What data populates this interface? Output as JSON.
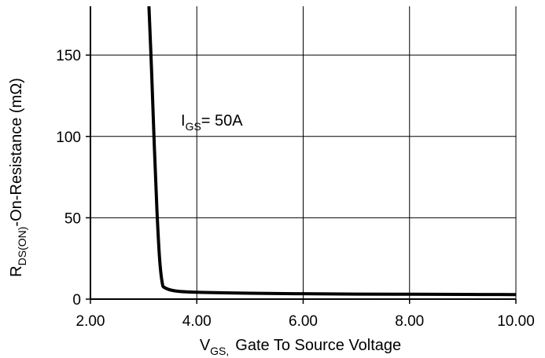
{
  "chart_data": {
    "type": "line",
    "xlabel": {
      "symbol": "V",
      "subscript": "GS,",
      "text": "Gate To Source Voltage"
    },
    "ylabel": {
      "symbol": "R",
      "subscript": "DS(ON)",
      "text": "-On-Resistance (mΩ)"
    },
    "xlim": [
      2.0,
      10.0
    ],
    "ylim": [
      0,
      180
    ],
    "x_ticks": [
      2.0,
      4.0,
      6.0,
      8.0,
      10.0
    ],
    "x_tick_labels": [
      "2.00",
      "4.00",
      "6.00",
      "8.00",
      "10.00"
    ],
    "y_ticks": [
      0,
      50,
      100,
      150
    ],
    "y_tick_labels": [
      "0",
      "50",
      "100",
      "150"
    ],
    "grid": true,
    "annotation": {
      "symbol": "I",
      "subscript": "GS",
      "text": "= 50A"
    },
    "series": [
      {
        "x": [
          3.1,
          3.15,
          3.2,
          3.25,
          3.3,
          3.35,
          3.4,
          3.6,
          4.0,
          5.0,
          6.0,
          7.0,
          8.0,
          9.0,
          10.0
        ],
        "y": [
          180,
          140,
          95,
          55,
          25,
          10,
          7,
          5,
          4.2,
          3.6,
          3.3,
          3.1,
          3.0,
          2.9,
          2.8
        ]
      }
    ],
    "colors": {
      "line": "#000000",
      "grid": "#000000",
      "axis": "#000000"
    }
  }
}
